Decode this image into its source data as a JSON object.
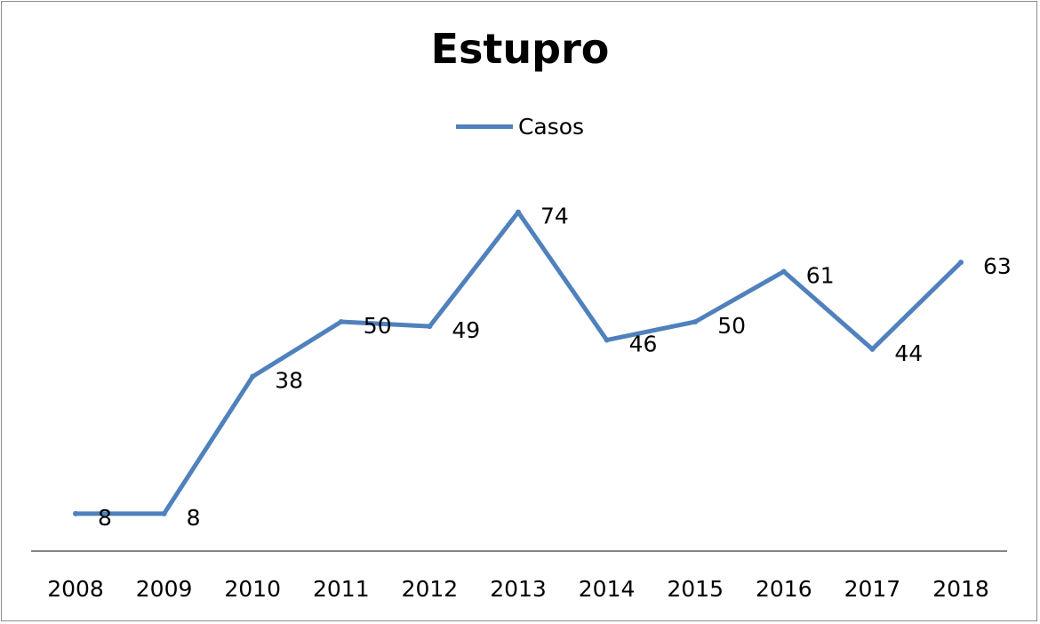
{
  "chart_data": {
    "type": "line",
    "title": "Estupro",
    "categories": [
      "2008",
      "2009",
      "2010",
      "2011",
      "2012",
      "2013",
      "2014",
      "2015",
      "2016",
      "2017",
      "2018"
    ],
    "series": [
      {
        "name": "Casos",
        "values": [
          8,
          8,
          38,
          50,
          49,
          74,
          46,
          50,
          61,
          44,
          63
        ],
        "color": "#4f81bd"
      }
    ],
    "data_labels": true,
    "legend": "top",
    "grid": false,
    "ylim": [
      -1,
      95
    ]
  }
}
